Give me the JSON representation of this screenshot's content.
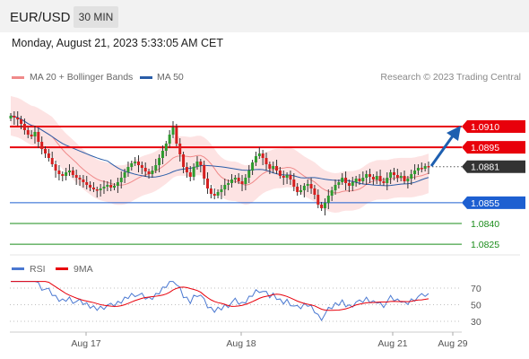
{
  "header": {
    "pair": "EUR/USD",
    "timeframe": "30 MIN"
  },
  "datetime": "Monday, August 21, 2023 5:33:05 AM CET",
  "legend": {
    "ma20": {
      "label": "MA 20 + Bollinger Bands",
      "color": "#f08a8a"
    },
    "ma50": {
      "label": "MA 50",
      "color": "#2a5da8"
    }
  },
  "credit": "Research © 2023 Trading Central",
  "levels": [
    {
      "value": "1.0910",
      "kind": "resistance",
      "color": "#e8000b"
    },
    {
      "value": "1.0895",
      "kind": "resistance",
      "color": "#e8000b"
    },
    {
      "value": "1.0881",
      "kind": "current",
      "color": "#333333"
    },
    {
      "value": "1.0855",
      "kind": "pivot",
      "color": "#1d5fd1"
    },
    {
      "value": "1.0840",
      "kind": "support",
      "color": "#1a8c1a"
    },
    {
      "value": "1.0825",
      "kind": "support",
      "color": "#1a8c1a"
    }
  ],
  "indicator": {
    "rsi": {
      "label": "RSI",
      "color": "#4a78d1"
    },
    "ma9": {
      "label": "9MA",
      "color": "#e8000b"
    },
    "ticks": [
      "70",
      "50",
      "30"
    ]
  },
  "xaxis": [
    "Aug 17",
    "Aug 18",
    "Aug 21",
    "Aug 29"
  ],
  "colors": {
    "bull": "#2e9a2e",
    "bear": "#d41f1f",
    "arrow": "#1d5fb0"
  }
}
